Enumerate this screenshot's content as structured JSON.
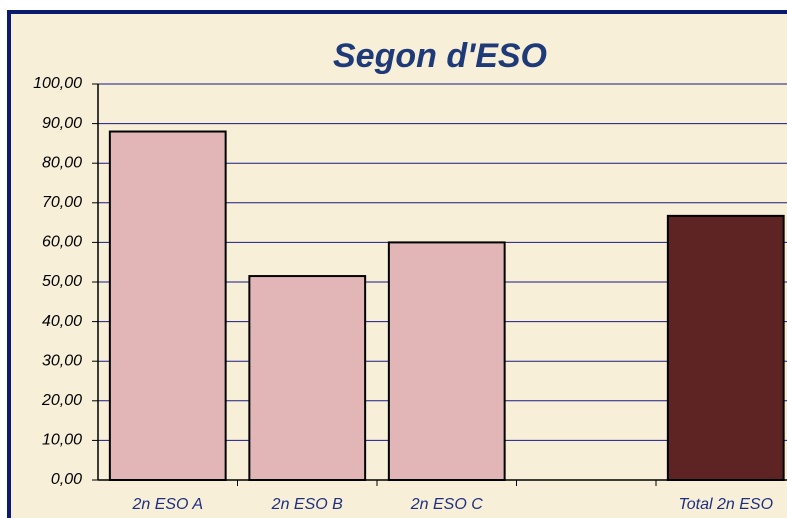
{
  "chart_data": {
    "type": "bar",
    "title": "Segon d'ESO",
    "categories": [
      "2n ESO A",
      "2n ESO B",
      "2n ESO C",
      null,
      "Total 2n ESO"
    ],
    "values": [
      88,
      51.5,
      60,
      null,
      66.7
    ],
    "colors": [
      "#e2b5b6",
      "#e2b5b6",
      "#e2b5b6",
      null,
      "#5e2323"
    ],
    "ylim": [
      0,
      100
    ],
    "yticks": [
      {
        "value": 0,
        "label": "0,00"
      },
      {
        "value": 10,
        "label": "10,00"
      },
      {
        "value": 20,
        "label": "20,00"
      },
      {
        "value": 30,
        "label": "30,00"
      },
      {
        "value": 40,
        "label": "40,00"
      },
      {
        "value": 50,
        "label": "50,00"
      },
      {
        "value": 60,
        "label": "60,00"
      },
      {
        "value": 70,
        "label": "70,00"
      },
      {
        "value": 80,
        "label": "80,00"
      },
      {
        "value": 90,
        "label": "90,00"
      },
      {
        "value": 100,
        "label": "100,00"
      }
    ],
    "grid": true
  }
}
